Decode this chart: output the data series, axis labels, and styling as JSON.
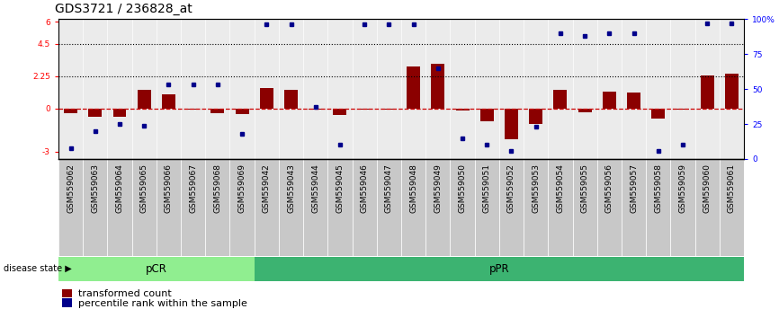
{
  "title": "GDS3721 / 236828_at",
  "samples": [
    "GSM559062",
    "GSM559063",
    "GSM559064",
    "GSM559065",
    "GSM559066",
    "GSM559067",
    "GSM559068",
    "GSM559069",
    "GSM559042",
    "GSM559043",
    "GSM559044",
    "GSM559045",
    "GSM559046",
    "GSM559047",
    "GSM559048",
    "GSM559049",
    "GSM559050",
    "GSM559051",
    "GSM559052",
    "GSM559053",
    "GSM559054",
    "GSM559055",
    "GSM559056",
    "GSM559057",
    "GSM559058",
    "GSM559059",
    "GSM559060",
    "GSM559061"
  ],
  "transformed_count": [
    -0.35,
    -0.6,
    -0.55,
    1.3,
    1.0,
    -0.05,
    -0.3,
    -0.4,
    1.4,
    1.3,
    -0.1,
    -0.45,
    -0.1,
    -0.05,
    2.9,
    3.1,
    -0.15,
    -0.9,
    -2.1,
    -1.05,
    1.3,
    -0.25,
    1.15,
    1.1,
    -0.7,
    -0.05,
    2.3,
    2.4
  ],
  "percentile_rank": [
    8,
    20,
    25,
    24,
    53,
    53,
    53,
    18,
    96,
    96,
    37,
    10,
    96,
    96,
    96,
    65,
    15,
    10,
    6,
    23,
    90,
    88,
    90,
    90,
    6,
    10,
    97,
    97
  ],
  "pCR_count": 8,
  "pPR_count": 20,
  "ylim_left": [
    -3.5,
    6.2
  ],
  "yticks_left": [
    -3,
    0,
    2.25,
    4.5,
    6
  ],
  "ytick_labels_left": [
    "-3",
    "0",
    "2.25",
    "4.5",
    "6"
  ],
  "yticks_right": [
    0,
    25,
    50,
    75,
    100
  ],
  "ytick_labels_right": [
    "0",
    "25",
    "50",
    "75",
    "100%"
  ],
  "hlines": [
    4.5,
    2.25
  ],
  "bar_color": "#8B0000",
  "dot_color": "#00008B",
  "pCR_color": "#90EE90",
  "pPR_color": "#3CB371",
  "col_bg_color": "#C8C8C8",
  "zero_line_color": "#CC0000",
  "title_fontsize": 10,
  "tick_fontsize": 6.5,
  "legend_fontsize": 8
}
